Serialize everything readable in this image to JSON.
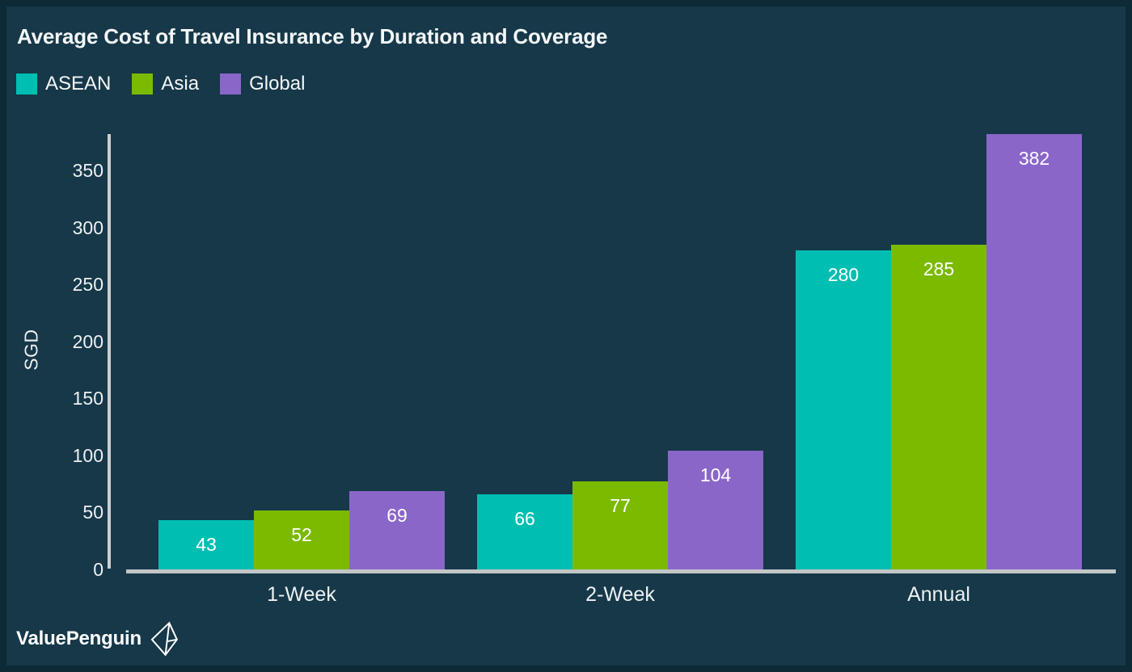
{
  "theme": {
    "background": "#163849",
    "frame": "#0D2A36",
    "axis_line_color": "#CBCFD0",
    "baseline_color": "#C2C6C7",
    "text_color": "#F4F7F8",
    "value_label_color": "#FFFFFF"
  },
  "chart_data": {
    "type": "bar",
    "title": "Average Cost of Travel Insurance by Duration and Coverage",
    "xlabel": "",
    "ylabel": "SGD",
    "categories": [
      "1-Week",
      "2-Week",
      "Annual"
    ],
    "series": [
      {
        "name": "ASEAN",
        "color": "#00BFB2",
        "values": [
          43,
          66,
          280
        ]
      },
      {
        "name": "Asia",
        "color": "#7CBA00",
        "values": [
          52,
          77,
          285
        ]
      },
      {
        "name": "Global",
        "color": "#8B66C9",
        "values": [
          69,
          104,
          382
        ]
      }
    ],
    "value_labels_shown": true,
    "yticks": [
      0,
      50,
      100,
      150,
      200,
      250,
      300,
      350
    ],
    "ylim": [
      0,
      382
    ],
    "grid": false,
    "legend_position": "top-left"
  },
  "branding": {
    "logo_text": "ValuePenguin"
  }
}
